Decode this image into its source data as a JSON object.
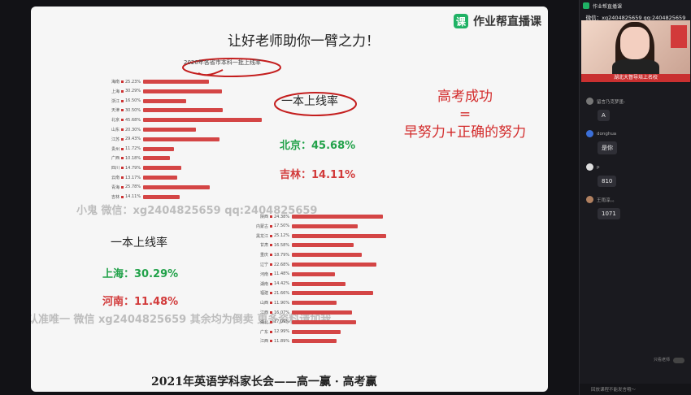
{
  "brand": {
    "name": "作业帮直播课"
  },
  "slide": {
    "title": "让好老师助你一臂之力！",
    "chart_title": "2020年各省市本科一批上线率",
    "box_label": "一本上线率",
    "left_label": "一本上线率",
    "beijing": "北京：45.68%",
    "jilin": "吉林：14.11%",
    "shanghai": "上海：30.29%",
    "henan": "河南：11.48%",
    "equation": {
      "line1": "高考成功",
      "line2": "=",
      "line3": "早努力+正确的努力"
    },
    "bottom": "2021年英语学科家长会——高一赢 · 高考赢"
  },
  "watermarks": {
    "w1": "小鬼  微信：xg2404825659  qq:2404825659",
    "w2": "认准唯一 微信 xg2404825659  其余均为倒卖  更多资料请加我"
  },
  "chart_data": {
    "type": "bar",
    "title": "2020年各省市本科一批上线率",
    "left": [
      {
        "p": "海南",
        "v": 25.23
      },
      {
        "p": "上海",
        "v": 30.29
      },
      {
        "p": "浙江",
        "v": 16.5
      },
      {
        "p": "天津",
        "v": 30.5
      },
      {
        "p": "北京",
        "v": 45.68
      },
      {
        "p": "山东",
        "v": 20.3
      },
      {
        "p": "江苏",
        "v": 29.43
      },
      {
        "p": "贵州",
        "v": 11.72
      },
      {
        "p": "广西",
        "v": 10.18
      },
      {
        "p": "四川",
        "v": 14.79
      },
      {
        "p": "云南",
        "v": 13.17
      },
      {
        "p": "青海",
        "v": 25.78
      },
      {
        "p": "吉林",
        "v": 14.11
      }
    ],
    "right": [
      {
        "p": "陕西",
        "v": 24.38
      },
      {
        "p": "内蒙古",
        "v": 17.5
      },
      {
        "p": "黑龙江",
        "v": 25.12
      },
      {
        "p": "甘肃",
        "v": 16.58
      },
      {
        "p": "重庆",
        "v": 18.79
      },
      {
        "p": "辽宁",
        "v": 22.68
      },
      {
        "p": "河南",
        "v": 11.48
      },
      {
        "p": "湖南",
        "v": 14.42
      },
      {
        "p": "福建",
        "v": 21.66
      },
      {
        "p": "山西",
        "v": 11.9
      },
      {
        "p": "江西",
        "v": 16.07
      },
      {
        "p": "湖北",
        "v": 17.09
      },
      {
        "p": "广东",
        "v": 12.99
      },
      {
        "p": "江西",
        "v": 11.89
      }
    ]
  },
  "panel": {
    "top_title": "作业帮直播课",
    "contact": "微信：xg2404825659  qq:2404825659",
    "banner": "湖北大督导培上名校",
    "messages": [
      {
        "user": "留言乃克梦墨-",
        "text": "A"
      },
      {
        "user": "donghua",
        "text": "是你"
      },
      {
        "user": "p",
        "text": "810"
      },
      {
        "user": "王雨淳。。",
        "text": "1071"
      }
    ],
    "teacher_only": "只看老师",
    "input_placeholder": "回放课程不能发言哦～"
  },
  "colors": {
    "bar": "#d44545",
    "green": "#22a24a",
    "red": "#d23a3a",
    "brand": "#1fb265"
  }
}
